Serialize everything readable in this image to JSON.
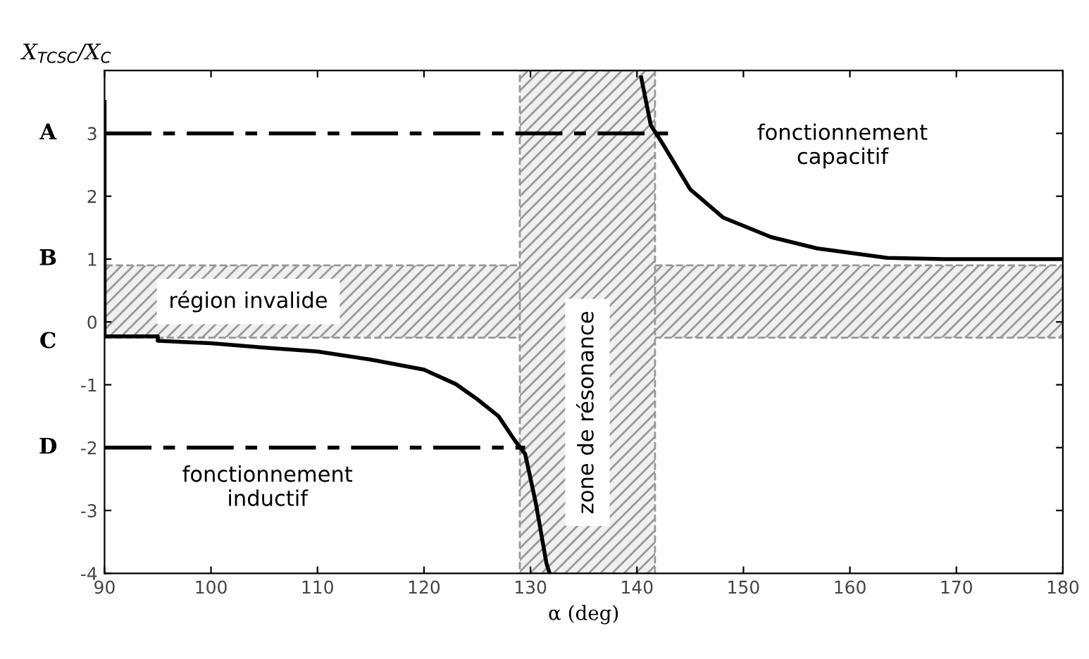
{
  "chart_data": {
    "type": "line",
    "xlabel": "α (deg)",
    "ylabel": "X$_{TCSC}$/X$_{C}$",
    "xlim": [
      90,
      180
    ],
    "xticks": [
      90,
      100,
      110,
      120,
      130,
      140,
      150,
      160,
      170,
      180
    ],
    "ylim": [
      -4,
      4
    ],
    "yticks": [
      -4,
      -3,
      -2,
      -1,
      0,
      1,
      2,
      3
    ],
    "grid": false,
    "marker": "none",
    "series": [
      {
        "color": "#000000",
        "line_style": "solid",
        "x": [
          90,
          90,
          95,
          95,
          100,
          105,
          110,
          115,
          120,
          123,
          125,
          127,
          128.5,
          129.5,
          130.5,
          131.5,
          131.8
        ],
        "values": [
          3.5,
          -0.23,
          -0.23,
          -0.3,
          -0.34,
          -0.41,
          -0.47,
          -0.6,
          -0.76,
          -0.99,
          -1.23,
          -1.5,
          -1.88,
          -2.1,
          -2.88,
          -3.84,
          -4
        ]
      },
      {
        "color": "#000000",
        "line_style": "solid",
        "x": [
          140.4,
          141.3,
          142.4,
          145,
          148.1,
          152.6,
          156.9,
          163.5,
          168.8,
          180
        ],
        "values": [
          3.89,
          3.13,
          2.84,
          2.11,
          1.66,
          1.35,
          1.17,
          1.02,
          1.0,
          1.0
        ]
      },
      {
        "color": "#000000",
        "line_style": "dashed",
        "x": [
          90,
          143
        ],
        "values": [
          3,
          3
        ]
      },
      {
        "color": "#000000",
        "line_style": "dashed",
        "x": [
          90,
          129.5
        ],
        "values": [
          -2,
          -2
        ]
      }
    ],
    "bands": [
      {
        "axis": "y",
        "from": -0.25,
        "to": 0.9,
        "label": "région invalide",
        "color": "#999999"
      },
      {
        "axis": "x",
        "from": 129,
        "to": 141.7,
        "label": "zone de résonance",
        "color": "#999999"
      }
    ],
    "annotations": [
      "A",
      "B",
      "C",
      "D",
      "fonctionnement\ncapacitif",
      "fonctionnement\ninductif"
    ]
  }
}
